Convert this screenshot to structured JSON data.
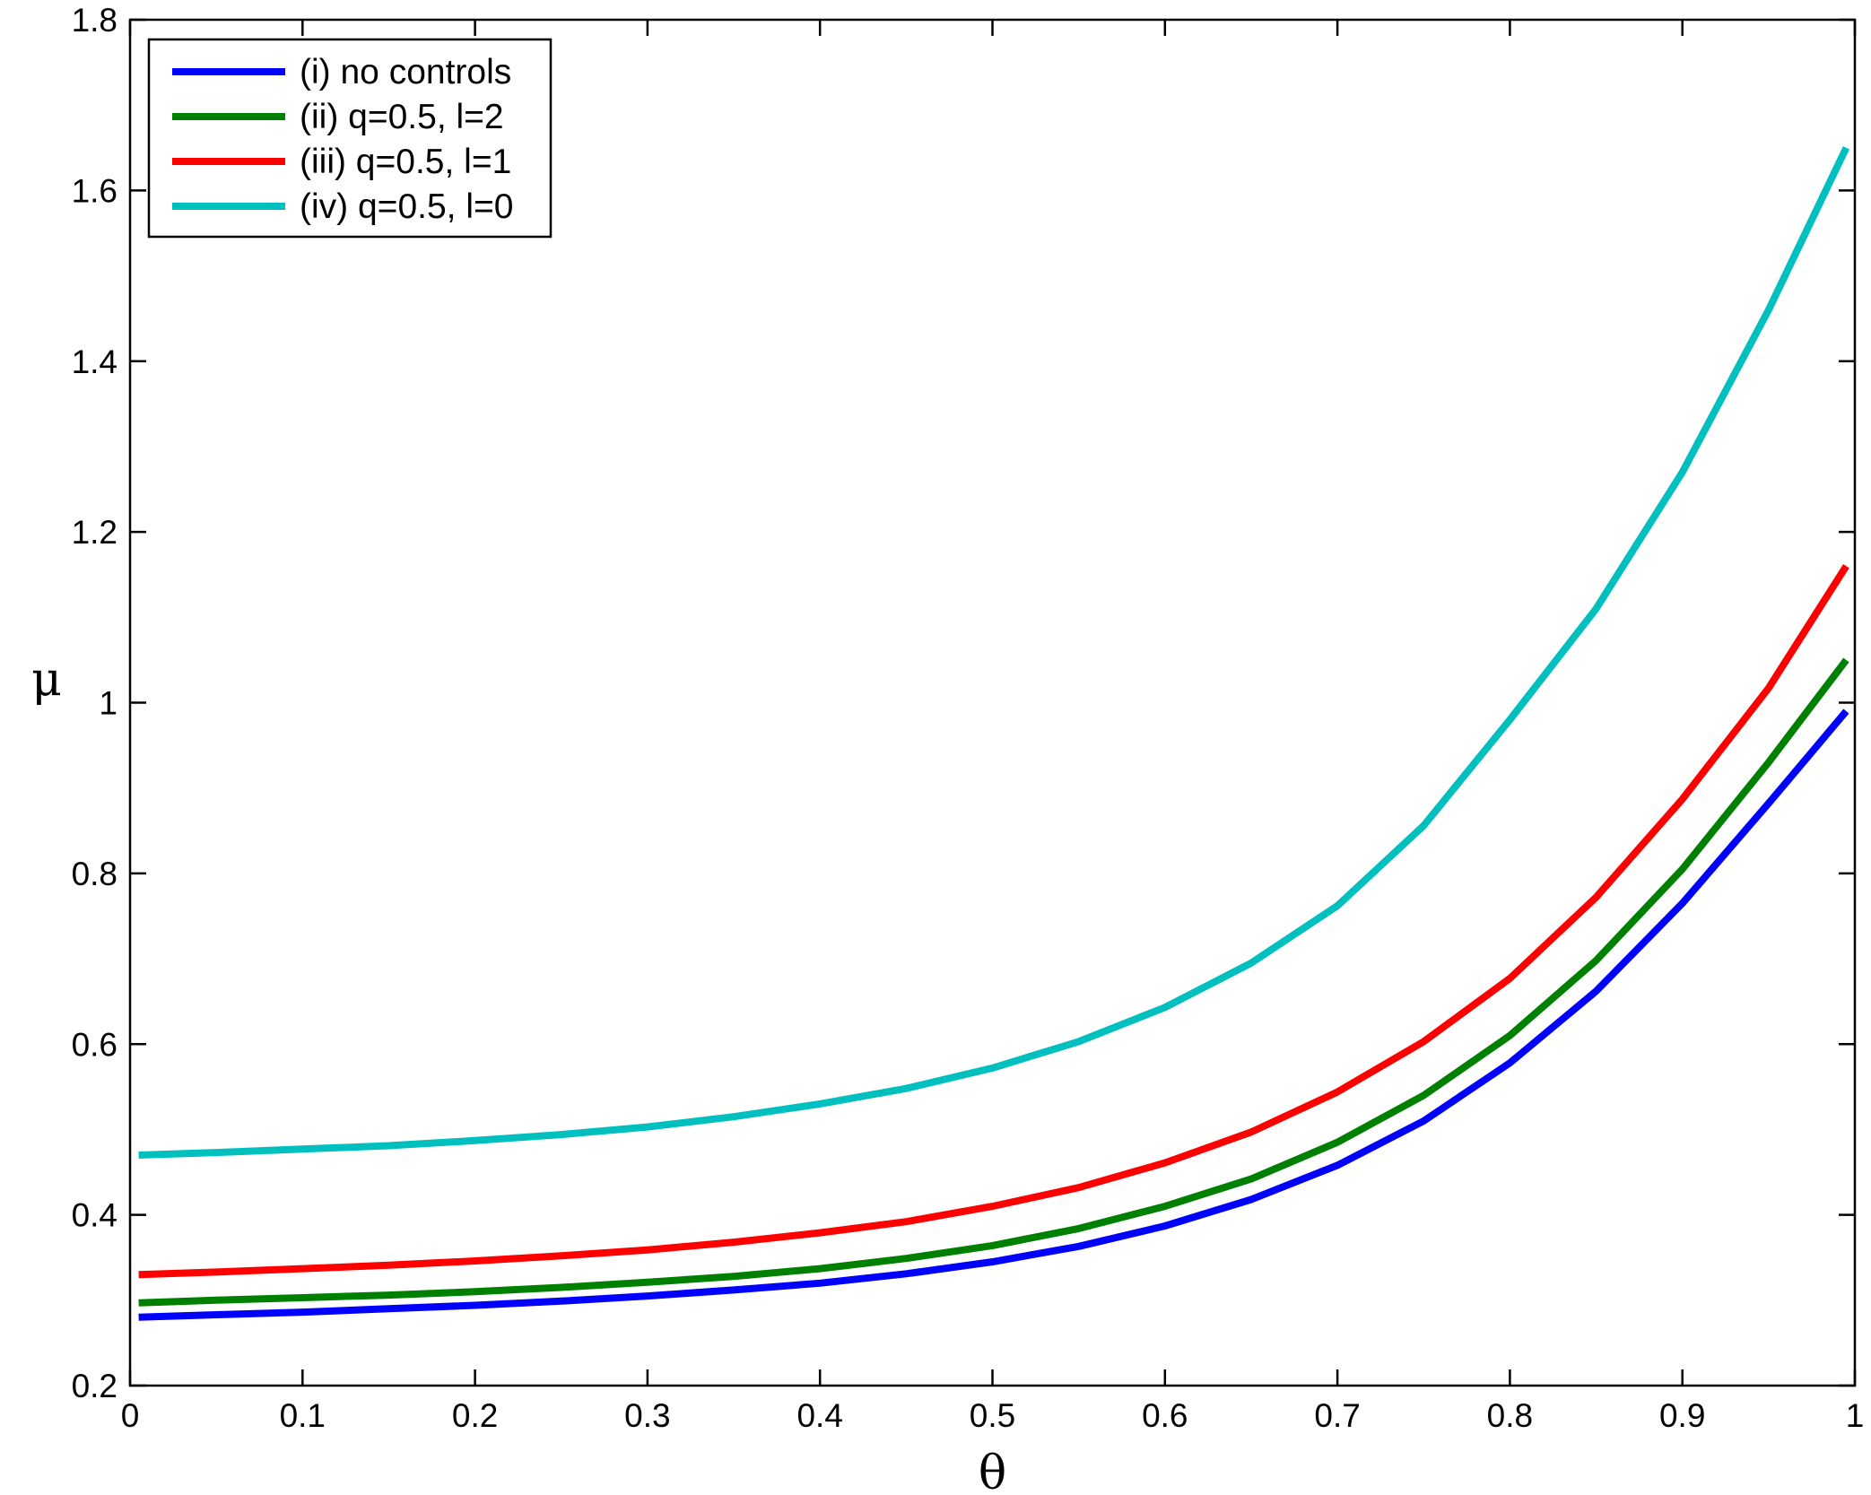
{
  "chart_data": {
    "type": "line",
    "title": "",
    "xlabel": "θ",
    "ylabel": "μ",
    "xlim": [
      0,
      1
    ],
    "ylim": [
      0.2,
      1.8
    ],
    "xticks": [
      0,
      0.1,
      0.2,
      0.3,
      0.4,
      0.5,
      0.6,
      0.7,
      0.8,
      0.9,
      1
    ],
    "xtick_labels": [
      "0",
      "0.1",
      "0.2",
      "0.3",
      "0.4",
      "0.5",
      "0.6",
      "0.7",
      "0.8",
      "0.9",
      "1"
    ],
    "yticks": [
      0.2,
      0.4,
      0.6,
      0.8,
      1,
      1.2,
      1.4,
      1.6,
      1.8
    ],
    "ytick_labels": [
      "0.2",
      "0.4",
      "0.6",
      "0.8",
      "1",
      "1.2",
      "1.4",
      "1.6",
      "1.8"
    ],
    "grid": false,
    "legend_position": "top-left",
    "x": [
      0.005,
      0.05,
      0.1,
      0.15,
      0.2,
      0.25,
      0.3,
      0.35,
      0.4,
      0.45,
      0.5,
      0.55,
      0.6,
      0.65,
      0.7,
      0.75,
      0.8,
      0.85,
      0.9,
      0.95,
      0.995
    ],
    "series": [
      {
        "name": "(i) no controls",
        "color": "#0000ff",
        "values": [
          0.28,
          0.283,
          0.286,
          0.29,
          0.294,
          0.299,
          0.305,
          0.312,
          0.32,
          0.331,
          0.345,
          0.363,
          0.387,
          0.418,
          0.458,
          0.51,
          0.578,
          0.662,
          0.765,
          0.882,
          0.99
        ]
      },
      {
        "name": "(ii) q=0.5, l=2",
        "color": "#008000",
        "values": [
          0.297,
          0.3,
          0.303,
          0.306,
          0.31,
          0.315,
          0.321,
          0.328,
          0.337,
          0.349,
          0.364,
          0.384,
          0.41,
          0.442,
          0.485,
          0.54,
          0.61,
          0.698,
          0.805,
          0.93,
          1.05
        ]
      },
      {
        "name": "(iii) q=0.5, l=1",
        "color": "#ff0000",
        "values": [
          0.33,
          0.333,
          0.337,
          0.341,
          0.346,
          0.352,
          0.359,
          0.368,
          0.379,
          0.392,
          0.41,
          0.432,
          0.461,
          0.497,
          0.544,
          0.603,
          0.677,
          0.772,
          0.887,
          1.017,
          1.16
        ]
      },
      {
        "name": "(iv) q=0.5, l=0",
        "color": "#00bfbf",
        "values": [
          0.47,
          0.473,
          0.477,
          0.481,
          0.487,
          0.494,
          0.503,
          0.515,
          0.53,
          0.548,
          0.572,
          0.603,
          0.643,
          0.695,
          0.762,
          0.856,
          0.98,
          1.11,
          1.27,
          1.46,
          1.65
        ]
      }
    ]
  }
}
